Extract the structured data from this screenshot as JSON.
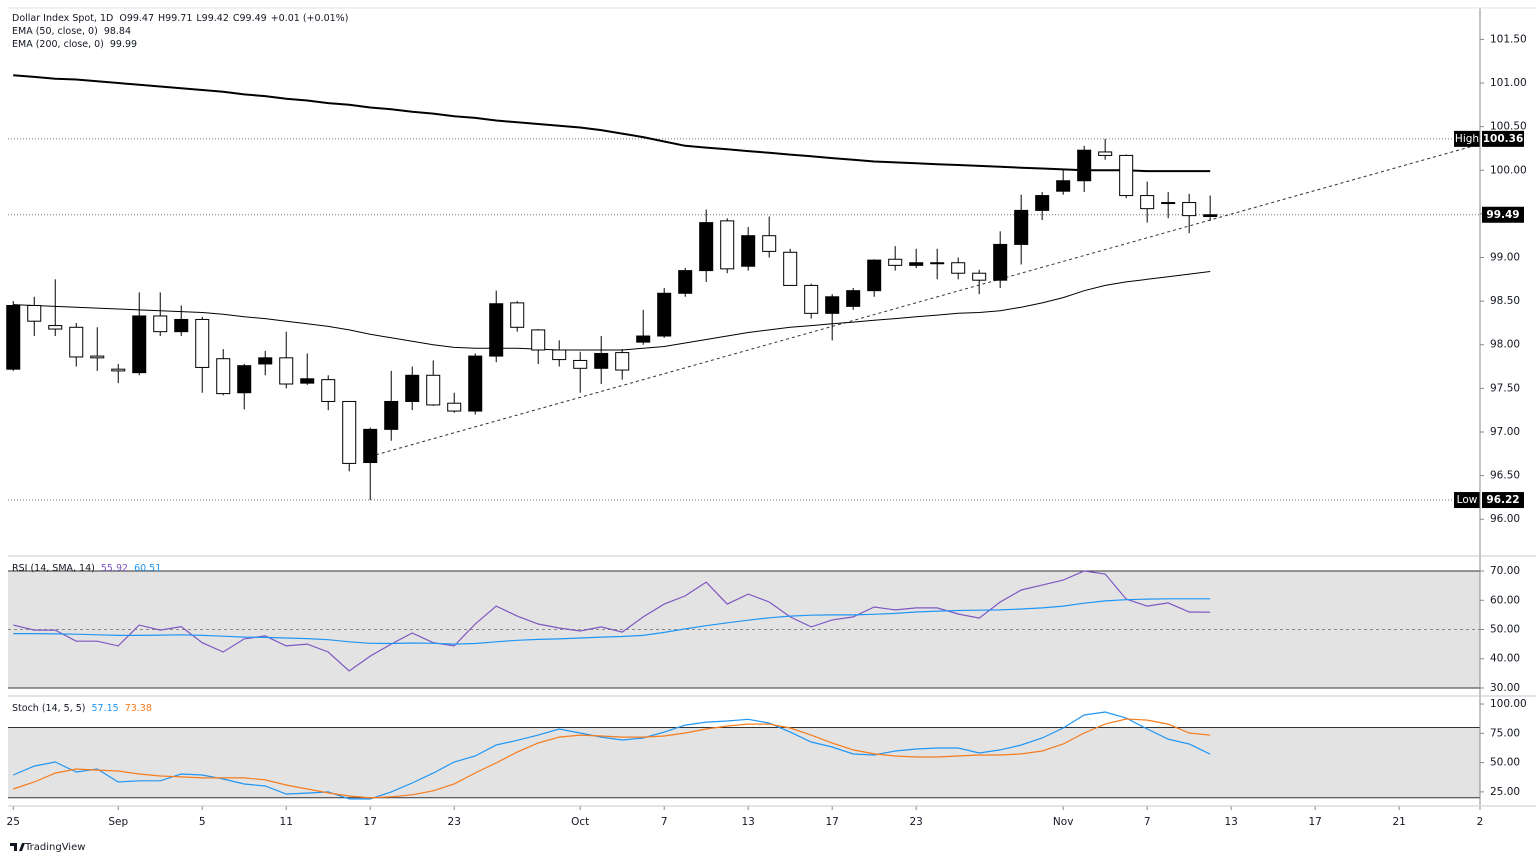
{
  "chart_data": [
    {
      "type": "candlestick",
      "title": "Dollar Index Spot, 1D",
      "ohlc_labels": [
        "O",
        "H",
        "L",
        "C"
      ],
      "change_label": "+0.01 (+0.01%)",
      "up_color": "#000000",
      "down_color": "#ffffff",
      "grid": false,
      "x": [
        0,
        1,
        2,
        3,
        4,
        5,
        6,
        7,
        8,
        9,
        10,
        11,
        12,
        13,
        14,
        15,
        16,
        17,
        18,
        19,
        20,
        21,
        22,
        23,
        24,
        25,
        26,
        27,
        28,
        29,
        30,
        31,
        32,
        33,
        34,
        35,
        36,
        37,
        38,
        39,
        40,
        41,
        42,
        43,
        44,
        45,
        46,
        47,
        48,
        49,
        50,
        51,
        52,
        53,
        54,
        55,
        56,
        57
      ],
      "open": [
        97.72,
        98.45,
        98.22,
        98.2,
        97.87,
        97.72,
        97.68,
        98.33,
        98.15,
        98.29,
        97.84,
        97.45,
        97.78,
        97.85,
        97.56,
        97.6,
        97.35,
        96.65,
        97.03,
        97.35,
        97.65,
        97.33,
        97.24,
        97.87,
        98.48,
        98.17,
        97.94,
        97.82,
        97.73,
        97.91,
        98.03,
        98.1,
        98.59,
        98.85,
        99.42,
        98.9,
        99.25,
        99.06,
        98.68,
        98.36,
        98.44,
        98.62,
        98.98,
        98.91,
        98.93,
        98.94,
        98.82,
        98.74,
        99.15,
        99.54,
        99.76,
        99.88,
        100.21,
        100.17,
        99.71,
        99.63,
        99.63,
        99.47
      ],
      "high": [
        98.5,
        98.55,
        98.75,
        98.25,
        98.2,
        97.78,
        98.6,
        98.6,
        98.45,
        98.32,
        97.95,
        97.78,
        97.93,
        98.15,
        97.9,
        97.65,
        97.35,
        97.05,
        97.7,
        97.75,
        97.82,
        97.45,
        97.9,
        98.62,
        98.5,
        98.18,
        98.05,
        97.92,
        98.1,
        97.95,
        98.4,
        98.65,
        98.88,
        99.55,
        99.45,
        99.35,
        99.47,
        99.1,
        98.7,
        98.58,
        98.65,
        98.98,
        99.13,
        99.1,
        99.1,
        99.0,
        98.86,
        99.3,
        99.72,
        99.75,
        100.02,
        100.28,
        100.36,
        100.18,
        99.87,
        99.75,
        99.73,
        99.71
      ],
      "low": [
        97.7,
        98.1,
        98.1,
        97.75,
        97.7,
        97.56,
        97.65,
        98.1,
        98.1,
        97.45,
        97.42,
        97.26,
        97.65,
        97.5,
        97.54,
        97.25,
        96.55,
        96.22,
        96.9,
        97.25,
        97.3,
        97.22,
        97.2,
        97.8,
        98.15,
        97.78,
        97.75,
        97.45,
        97.55,
        97.6,
        98.0,
        98.08,
        98.55,
        98.72,
        98.82,
        98.85,
        99.0,
        98.68,
        98.3,
        98.05,
        98.4,
        98.55,
        98.85,
        98.88,
        98.75,
        98.75,
        98.58,
        98.65,
        98.92,
        99.43,
        99.72,
        99.75,
        100.12,
        99.68,
        99.4,
        99.45,
        99.28,
        99.42
      ],
      "close": [
        98.45,
        98.27,
        98.18,
        97.86,
        97.85,
        97.7,
        98.33,
        98.15,
        98.29,
        97.74,
        97.44,
        97.76,
        97.85,
        97.55,
        97.61,
        97.35,
        96.64,
        97.03,
        97.35,
        97.65,
        97.31,
        97.24,
        97.87,
        98.47,
        98.2,
        97.94,
        97.83,
        97.73,
        97.9,
        97.71,
        98.1,
        98.59,
        98.85,
        99.4,
        98.87,
        99.25,
        99.07,
        98.68,
        98.36,
        98.55,
        98.62,
        98.97,
        98.91,
        98.94,
        98.94,
        98.82,
        98.74,
        99.15,
        99.54,
        99.71,
        99.88,
        100.23,
        100.17,
        99.71,
        99.56,
        99.62,
        99.48,
        99.49
      ],
      "series": [
        {
          "name": "EMA (50, close, 0)",
          "color": "#000000",
          "width": 1,
          "values": [
            98.46,
            98.45,
            98.44,
            98.43,
            98.42,
            98.41,
            98.4,
            98.39,
            98.38,
            98.37,
            98.35,
            98.32,
            98.3,
            98.27,
            98.24,
            98.21,
            98.17,
            98.12,
            98.08,
            98.04,
            98.0,
            97.97,
            97.96,
            97.96,
            97.96,
            97.95,
            97.94,
            97.94,
            97.94,
            97.94,
            97.96,
            97.98,
            98.02,
            98.06,
            98.1,
            98.14,
            98.17,
            98.2,
            98.22,
            98.24,
            98.26,
            98.28,
            98.3,
            98.32,
            98.34,
            98.36,
            98.37,
            98.39,
            98.43,
            98.48,
            98.54,
            98.62,
            98.68,
            98.72,
            98.75,
            98.78,
            98.81,
            98.84
          ]
        },
        {
          "name": "EMA (200, close, 0)",
          "color": "#000000",
          "width": 2,
          "values": [
            101.09,
            101.07,
            101.05,
            101.04,
            101.02,
            101.0,
            100.98,
            100.96,
            100.94,
            100.92,
            100.9,
            100.87,
            100.85,
            100.82,
            100.8,
            100.77,
            100.75,
            100.72,
            100.7,
            100.67,
            100.65,
            100.62,
            100.6,
            100.57,
            100.55,
            100.53,
            100.51,
            100.49,
            100.46,
            100.42,
            100.38,
            100.33,
            100.28,
            100.26,
            100.24,
            100.22,
            100.2,
            100.18,
            100.16,
            100.14,
            100.12,
            100.1,
            100.09,
            100.08,
            100.07,
            100.06,
            100.05,
            100.04,
            100.03,
            100.02,
            100.01,
            100.0,
            100.0,
            100.0,
            99.99,
            99.99,
            99.99,
            99.99
          ]
        }
      ],
      "trendline": {
        "x": [
          17,
          69.85
        ],
        "values": [
          96.72,
          100.3
        ]
      },
      "price_lines": [
        {
          "label": "High",
          "value": 100.36
        },
        {
          "label": "Low",
          "value": 96.22
        },
        {
          "value": 99.49
        }
      ],
      "xlim": [
        -0.25,
        69.85
      ],
      "xticks": [
        {
          "value": 0,
          "label": "25"
        },
        {
          "value": 5,
          "label": "Sep"
        },
        {
          "value": 9,
          "label": "5"
        },
        {
          "value": 13,
          "label": "11"
        },
        {
          "value": 17,
          "label": "17"
        },
        {
          "value": 21,
          "label": "23"
        },
        {
          "value": 27,
          "label": "Oct"
        },
        {
          "value": 31,
          "label": "7"
        },
        {
          "value": 35,
          "label": "13"
        },
        {
          "value": 39,
          "label": "17"
        },
        {
          "value": 43,
          "label": "23"
        },
        {
          "value": 50,
          "label": "Nov"
        },
        {
          "value": 54,
          "label": "7"
        },
        {
          "value": 58,
          "label": "13"
        },
        {
          "value": 62,
          "label": "17"
        },
        {
          "value": 66,
          "label": "21"
        },
        {
          "value": 69.85,
          "label": "2"
        }
      ],
      "ylim": [
        95.59,
        101.86
      ],
      "yticks": [
        {
          "value": 96,
          "label": "96.00"
        },
        {
          "value": 96.5,
          "label": "96.50"
        },
        {
          "value": 97,
          "label": "97.00"
        },
        {
          "value": 97.5,
          "label": "97.50"
        },
        {
          "value": 98,
          "label": "98.00"
        },
        {
          "value": 98.5,
          "label": "98.50"
        },
        {
          "value": 99,
          "label": "99.00"
        },
        {
          "value": 99.5,
          "label": "99.50"
        },
        {
          "value": 100,
          "label": "100.00"
        },
        {
          "value": 100.5,
          "label": "100.50"
        },
        {
          "value": 101,
          "label": "101.00"
        },
        {
          "value": 101.5,
          "label": "101.50"
        }
      ]
    },
    {
      "type": "line",
      "title": "RSI (14, SMA, 14)",
      "series": [
        {
          "color": "#7e57c2",
          "values": [
            51.5,
            49.8,
            49.8,
            46.0,
            46.0,
            44.4,
            51.5,
            49.8,
            51.0,
            45.5,
            42.3,
            46.8,
            47.8,
            44.4,
            45.0,
            42.3,
            35.8,
            40.9,
            45.0,
            48.8,
            45.5,
            44.4,
            51.9,
            58.0,
            54.6,
            51.9,
            50.5,
            49.5,
            50.9,
            49.1,
            54.3,
            58.7,
            61.5,
            66.2,
            58.7,
            62.1,
            59.4,
            54.3,
            50.9,
            53.3,
            54.3,
            57.7,
            56.7,
            57.4,
            57.4,
            55.3,
            53.9,
            59.4,
            63.5,
            65.2,
            66.9,
            70.0,
            69.0,
            60.4,
            58.0,
            59.1,
            56.0,
            55.92
          ]
        },
        {
          "color": "#2196f3",
          "values": [
            48.6,
            48.6,
            48.5,
            48.4,
            48.2,
            48.0,
            48.0,
            48.1,
            48.2,
            48.0,
            47.7,
            47.4,
            47.3,
            47.1,
            46.9,
            46.5,
            45.8,
            45.3,
            45.2,
            45.4,
            45.3,
            45.0,
            45.2,
            45.8,
            46.3,
            46.6,
            46.8,
            47.1,
            47.4,
            47.6,
            48.0,
            49.0,
            50.2,
            51.3,
            52.3,
            53.2,
            54.0,
            54.6,
            54.9,
            55.0,
            55.0,
            55.2,
            55.5,
            56.0,
            56.3,
            56.5,
            56.6,
            56.7,
            57.0,
            57.4,
            58.0,
            59.0,
            59.8,
            60.2,
            60.4,
            60.5,
            60.5,
            60.51
          ]
        }
      ],
      "band": [
        30,
        70
      ],
      "midline": 50,
      "ylim": [
        27.6,
        74.8
      ],
      "yticks": [
        {
          "value": 30,
          "label": "30.00"
        },
        {
          "value": 40,
          "label": "40.00"
        },
        {
          "value": 50,
          "label": "50.00"
        },
        {
          "value": 60,
          "label": "60.00"
        },
        {
          "value": 70,
          "label": "70.00"
        }
      ]
    },
    {
      "type": "line",
      "title": "Stoch (14, 5, 5)",
      "series": [
        {
          "color": "#2196f3",
          "values": [
            39.4,
            47.0,
            50.5,
            42.0,
            44.5,
            33.4,
            34.5,
            34.5,
            40.3,
            39.4,
            36.0,
            31.7,
            30.0,
            23.2,
            24.0,
            25.0,
            19.0,
            18.9,
            25.0,
            32.6,
            41.0,
            50.5,
            55.6,
            65.0,
            69.0,
            73.5,
            78.7,
            75.3,
            71.8,
            69.3,
            71.0,
            76.0,
            82.0,
            84.6,
            85.5,
            87.0,
            83.7,
            76.0,
            67.6,
            63.3,
            57.3,
            56.5,
            59.9,
            61.6,
            62.5,
            62.5,
            58.2,
            60.8,
            65.0,
            71.0,
            79.5,
            90.6,
            93.2,
            88.0,
            78.7,
            70.0,
            65.9,
            57.15
          ]
        },
        {
          "color": "#f57c1f",
          "values": [
            27.5,
            33.4,
            41.0,
            44.5,
            43.6,
            42.8,
            40.3,
            38.6,
            37.8,
            36.9,
            36.9,
            36.9,
            35.2,
            30.9,
            27.5,
            24.1,
            21.5,
            19.9,
            20.8,
            22.5,
            25.9,
            31.8,
            41.1,
            49.7,
            59.0,
            66.7,
            71.8,
            73.5,
            72.7,
            71.8,
            71.8,
            72.7,
            75.3,
            78.7,
            81.2,
            82.9,
            82.9,
            79.5,
            73.5,
            66.7,
            60.8,
            57.4,
            55.6,
            54.8,
            54.8,
            55.6,
            56.5,
            56.5,
            57.4,
            59.9,
            65.9,
            75.3,
            82.9,
            87.2,
            86.3,
            82.9,
            75.3,
            73.38
          ]
        }
      ],
      "band": [
        20,
        80
      ],
      "ylim": [
        13.8,
        106
      ],
      "yticks": [
        {
          "value": 25,
          "label": "25.00"
        },
        {
          "value": 50,
          "label": "50.00"
        },
        {
          "value": 75,
          "label": "75.00"
        },
        {
          "value": 100,
          "label": "100.00"
        }
      ]
    }
  ],
  "footer": "TradingView"
}
